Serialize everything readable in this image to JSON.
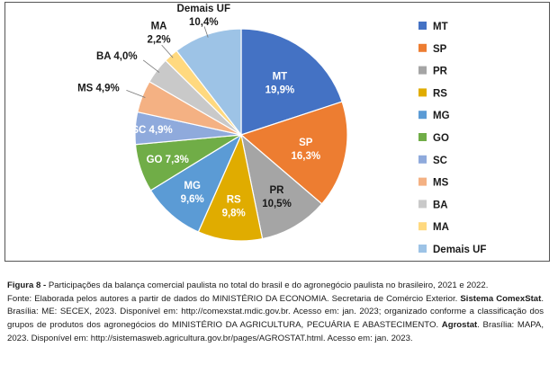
{
  "chart_data": {
    "type": "pie",
    "categories": [
      "MT",
      "SP",
      "PR",
      "RS",
      "MG",
      "GO",
      "SC",
      "MS",
      "BA",
      "MA",
      "Demais UF"
    ],
    "values": [
      19.9,
      16.3,
      10.5,
      9.8,
      9.6,
      7.3,
      4.9,
      4.9,
      4.0,
      2.2,
      10.4
    ],
    "value_labels": [
      "19,9%",
      "16,3%",
      "10,5%",
      "9,8%",
      "9,6%",
      "7,3%",
      "4,9%",
      "4,9%",
      "4,0%",
      "2,2%",
      "10,4%"
    ],
    "colors": [
      "#4472C4",
      "#ED7D31",
      "#A5A5A5",
      "#E0AC00",
      "#5B9BD5",
      "#70AD47",
      "#8FAADC",
      "#F4B183",
      "#C9C9C9",
      "#FFD97F",
      "#9DC3E6"
    ],
    "legend_position": "right"
  },
  "caption": {
    "figure_label": "Figura 8 -",
    "figure_text": " Participações da balança comercial paulista no total do brasil e do agronegócio paulista no brasileiro, 2021 e 2022.",
    "source_1": "Fonte: Elaborada pelos autores a partir de dados do MINISTÉRIO DA ECONOMIA. Secretaria de Comércio Exterior. ",
    "source_bold_1": "Sistema ComexStat",
    "source_2": ". Brasília: ME: SECEX, 2023. Disponível em: http://comexstat.mdic.gov.br. Acesso em: jan. 2023; organizado conforme a classificação dos grupos de produtos dos agronegócios do MINISTÉRIO DA AGRICULTURA, PECUÁRIA E ABASTECIMENTO. ",
    "source_bold_2": "Agrostat",
    "source_3": ". Brasília: MAPA, 2023. Disponível em: http://sistemasweb.agricultura.gov.br/pages/AGROSTAT.html. Acesso em: jan. 2023."
  }
}
